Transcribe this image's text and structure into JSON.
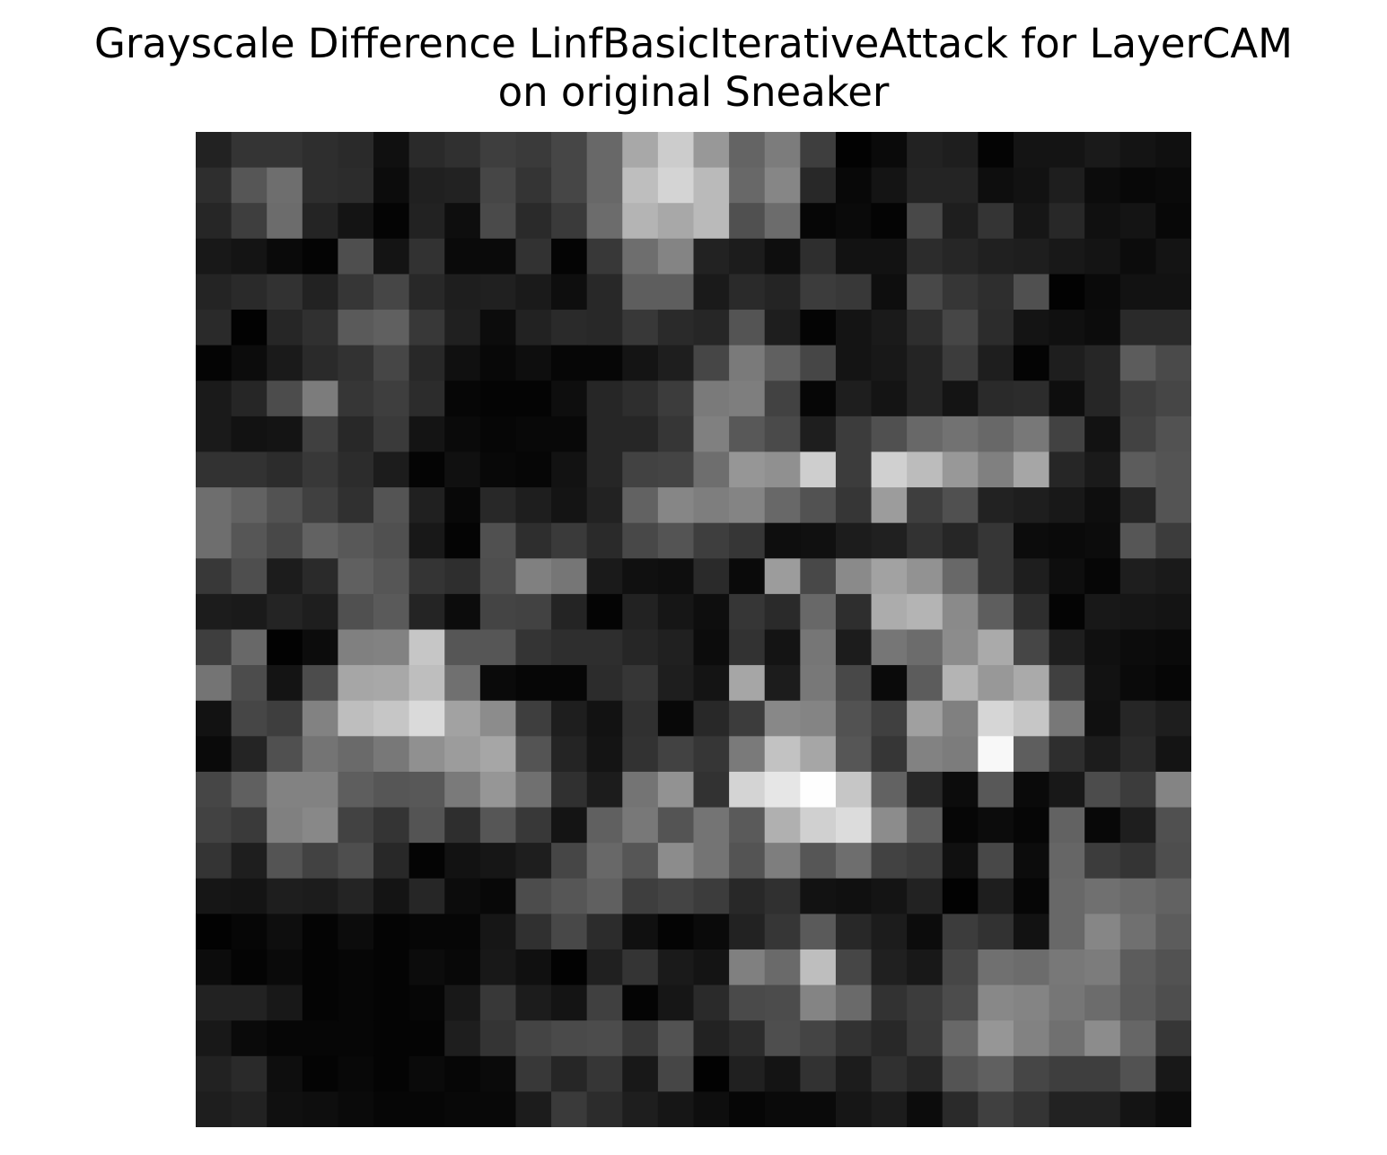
{
  "chart_data": {
    "type": "heatmap",
    "title_lines": [
      "Grayscale Difference LinfBasicIterativeAttack for LayerCAM",
      "on original Sneaker"
    ],
    "xlabel": "",
    "ylabel": "",
    "colormap": "gray",
    "value_range": [
      0,
      255
    ],
    "axes_visible": false,
    "rows": 28,
    "cols": 28,
    "values": [
      [
        34,
        52,
        52,
        46,
        42,
        16,
        42,
        48,
        62,
        58,
        70,
        104,
        168,
        204,
        152,
        100,
        124,
        62,
        2,
        10,
        34,
        30,
        4,
        20,
        20,
        26,
        20,
        16
      ],
      [
        46,
        86,
        110,
        46,
        44,
        12,
        32,
        34,
        70,
        52,
        70,
        104,
        190,
        212,
        186,
        104,
        134,
        40,
        8,
        20,
        36,
        36,
        14,
        18,
        30,
        12,
        8,
        10
      ],
      [
        38,
        62,
        108,
        36,
        20,
        4,
        34,
        14,
        74,
        42,
        58,
        108,
        180,
        168,
        186,
        80,
        108,
        6,
        10,
        4,
        72,
        30,
        52,
        22,
        40,
        16,
        20,
        8
      ],
      [
        24,
        20,
        10,
        4,
        78,
        20,
        50,
        10,
        10,
        50,
        4,
        56,
        110,
        132,
        34,
        28,
        14,
        46,
        18,
        18,
        44,
        38,
        32,
        30,
        24,
        20,
        12,
        20
      ],
      [
        36,
        42,
        50,
        34,
        54,
        70,
        40,
        30,
        32,
        26,
        14,
        40,
        94,
        94,
        26,
        42,
        36,
        60,
        56,
        14,
        72,
        54,
        46,
        80,
        2,
        10,
        18,
        18
      ],
      [
        42,
        2,
        38,
        48,
        90,
        96,
        56,
        32,
        12,
        34,
        42,
        40,
        56,
        42,
        38,
        84,
        30,
        4,
        20,
        26,
        46,
        70,
        44,
        20,
        16,
        12,
        42,
        42
      ],
      [
        4,
        12,
        26,
        42,
        50,
        70,
        40,
        16,
        8,
        14,
        6,
        6,
        20,
        30,
        70,
        122,
        96,
        70,
        20,
        24,
        36,
        60,
        30,
        4,
        30,
        38,
        92,
        74
      ],
      [
        26,
        38,
        76,
        124,
        54,
        62,
        44,
        6,
        4,
        4,
        14,
        38,
        46,
        60,
        122,
        126,
        66,
        6,
        30,
        20,
        36,
        20,
        42,
        44,
        14,
        38,
        62,
        70
      ],
      [
        26,
        18,
        20,
        64,
        40,
        58,
        20,
        10,
        6,
        8,
        8,
        38,
        38,
        54,
        128,
        88,
        74,
        30,
        60,
        80,
        104,
        114,
        104,
        120,
        66,
        18,
        66,
        82
      ],
      [
        50,
        50,
        44,
        56,
        44,
        28,
        4,
        16,
        8,
        6,
        18,
        38,
        66,
        68,
        110,
        150,
        144,
        206,
        60,
        208,
        188,
        152,
        128,
        166,
        38,
        26,
        92,
        84
      ],
      [
        110,
        98,
        82,
        64,
        48,
        84,
        32,
        8,
        40,
        30,
        20,
        34,
        98,
        134,
        126,
        132,
        104,
        82,
        54,
        156,
        62,
        80,
        34,
        30,
        24,
        14,
        38,
        84
      ],
      [
        110,
        86,
        72,
        98,
        88,
        80,
        24,
        4,
        80,
        46,
        58,
        42,
        72,
        84,
        62,
        54,
        14,
        16,
        28,
        32,
        50,
        38,
        54,
        12,
        10,
        12,
        86,
        60
      ],
      [
        56,
        78,
        28,
        42,
        96,
        86,
        52,
        46,
        78,
        128,
        118,
        26,
        16,
        14,
        42,
        10,
        156,
        72,
        138,
        162,
        146,
        104,
        54,
        30,
        14,
        6,
        30,
        26
      ],
      [
        28,
        26,
        36,
        30,
        80,
        90,
        36,
        12,
        68,
        66,
        36,
        4,
        34,
        22,
        14,
        54,
        42,
        104,
        46,
        172,
        180,
        138,
        94,
        46,
        4,
        24,
        22,
        20
      ],
      [
        62,
        104,
        2,
        12,
        128,
        130,
        198,
        86,
        86,
        52,
        46,
        46,
        38,
        32,
        12,
        50,
        20,
        118,
        28,
        118,
        108,
        140,
        170,
        70,
        30,
        16,
        12,
        10
      ],
      [
        116,
        76,
        20,
        76,
        166,
        168,
        190,
        112,
        10,
        6,
        6,
        44,
        54,
        30,
        20,
        166,
        28,
        120,
        72,
        10,
        92,
        180,
        152,
        170,
        64,
        18,
        10,
        6
      ],
      [
        18,
        70,
        62,
        130,
        190,
        198,
        218,
        162,
        140,
        62,
        30,
        18,
        48,
        8,
        40,
        60,
        136,
        132,
        82,
        64,
        160,
        128,
        214,
        198,
        120,
        16,
        38,
        30
      ],
      [
        10,
        36,
        80,
        116,
        106,
        120,
        144,
        156,
        166,
        84,
        36,
        20,
        50,
        66,
        54,
        122,
        194,
        166,
        86,
        54,
        130,
        124,
        248,
        94,
        46,
        28,
        42,
        20
      ],
      [
        70,
        96,
        130,
        130,
        94,
        86,
        88,
        122,
        150,
        112,
        48,
        28,
        116,
        146,
        50,
        212,
        230,
        254,
        198,
        98,
        40,
        12,
        88,
        10,
        24,
        76,
        60,
        132
      ],
      [
        66,
        58,
        128,
        136,
        66,
        52,
        84,
        46,
        86,
        56,
        20,
        96,
        120,
        84,
        116,
        90,
        176,
        208,
        220,
        140,
        92,
        6,
        12,
        6,
        98,
        8,
        30,
        80
      ],
      [
        52,
        30,
        84,
        66,
        78,
        40,
        4,
        18,
        22,
        30,
        70,
        104,
        86,
        140,
        116,
        84,
        126,
        86,
        110,
        66,
        60,
        16,
        72,
        12,
        102,
        60,
        52,
        78
      ],
      [
        22,
        20,
        30,
        28,
        36,
        20,
        38,
        12,
        8,
        76,
        86,
        96,
        62,
        68,
        60,
        40,
        48,
        18,
        16,
        20,
        34,
        2,
        30,
        6,
        104,
        112,
        106,
        98
      ],
      [
        2,
        6,
        14,
        4,
        12,
        4,
        6,
        6,
        22,
        48,
        72,
        44,
        16,
        4,
        10,
        34,
        54,
        90,
        40,
        28,
        12,
        60,
        50,
        18,
        104,
        134,
        112,
        92
      ],
      [
        12,
        4,
        10,
        4,
        6,
        4,
        12,
        8,
        24,
        16,
        2,
        32,
        52,
        26,
        20,
        128,
        106,
        190,
        70,
        32,
        24,
        70,
        112,
        108,
        120,
        124,
        92,
        82
      ],
      [
        34,
        34,
        24,
        4,
        6,
        4,
        6,
        24,
        56,
        28,
        20,
        64,
        4,
        22,
        42,
        74,
        76,
        132,
        106,
        50,
        60,
        76,
        136,
        132,
        118,
        108,
        90,
        78
      ],
      [
        24,
        10,
        6,
        6,
        6,
        4,
        4,
        30,
        52,
        68,
        74,
        76,
        56,
        82,
        34,
        44,
        78,
        68,
        50,
        40,
        58,
        104,
        150,
        130,
        112,
        140,
        102,
        54
      ],
      [
        34,
        42,
        14,
        4,
        8,
        4,
        10,
        6,
        10,
        56,
        38,
        54,
        24,
        70,
        2,
        32,
        20,
        50,
        28,
        48,
        38,
        84,
        96,
        70,
        62,
        62,
        82,
        24
      ],
      [
        30,
        34,
        16,
        14,
        10,
        6,
        6,
        8,
        8,
        28,
        58,
        44,
        30,
        22,
        14,
        6,
        10,
        10,
        22,
        28,
        12,
        42,
        64,
        52,
        34,
        34,
        20,
        12
      ]
    ]
  }
}
